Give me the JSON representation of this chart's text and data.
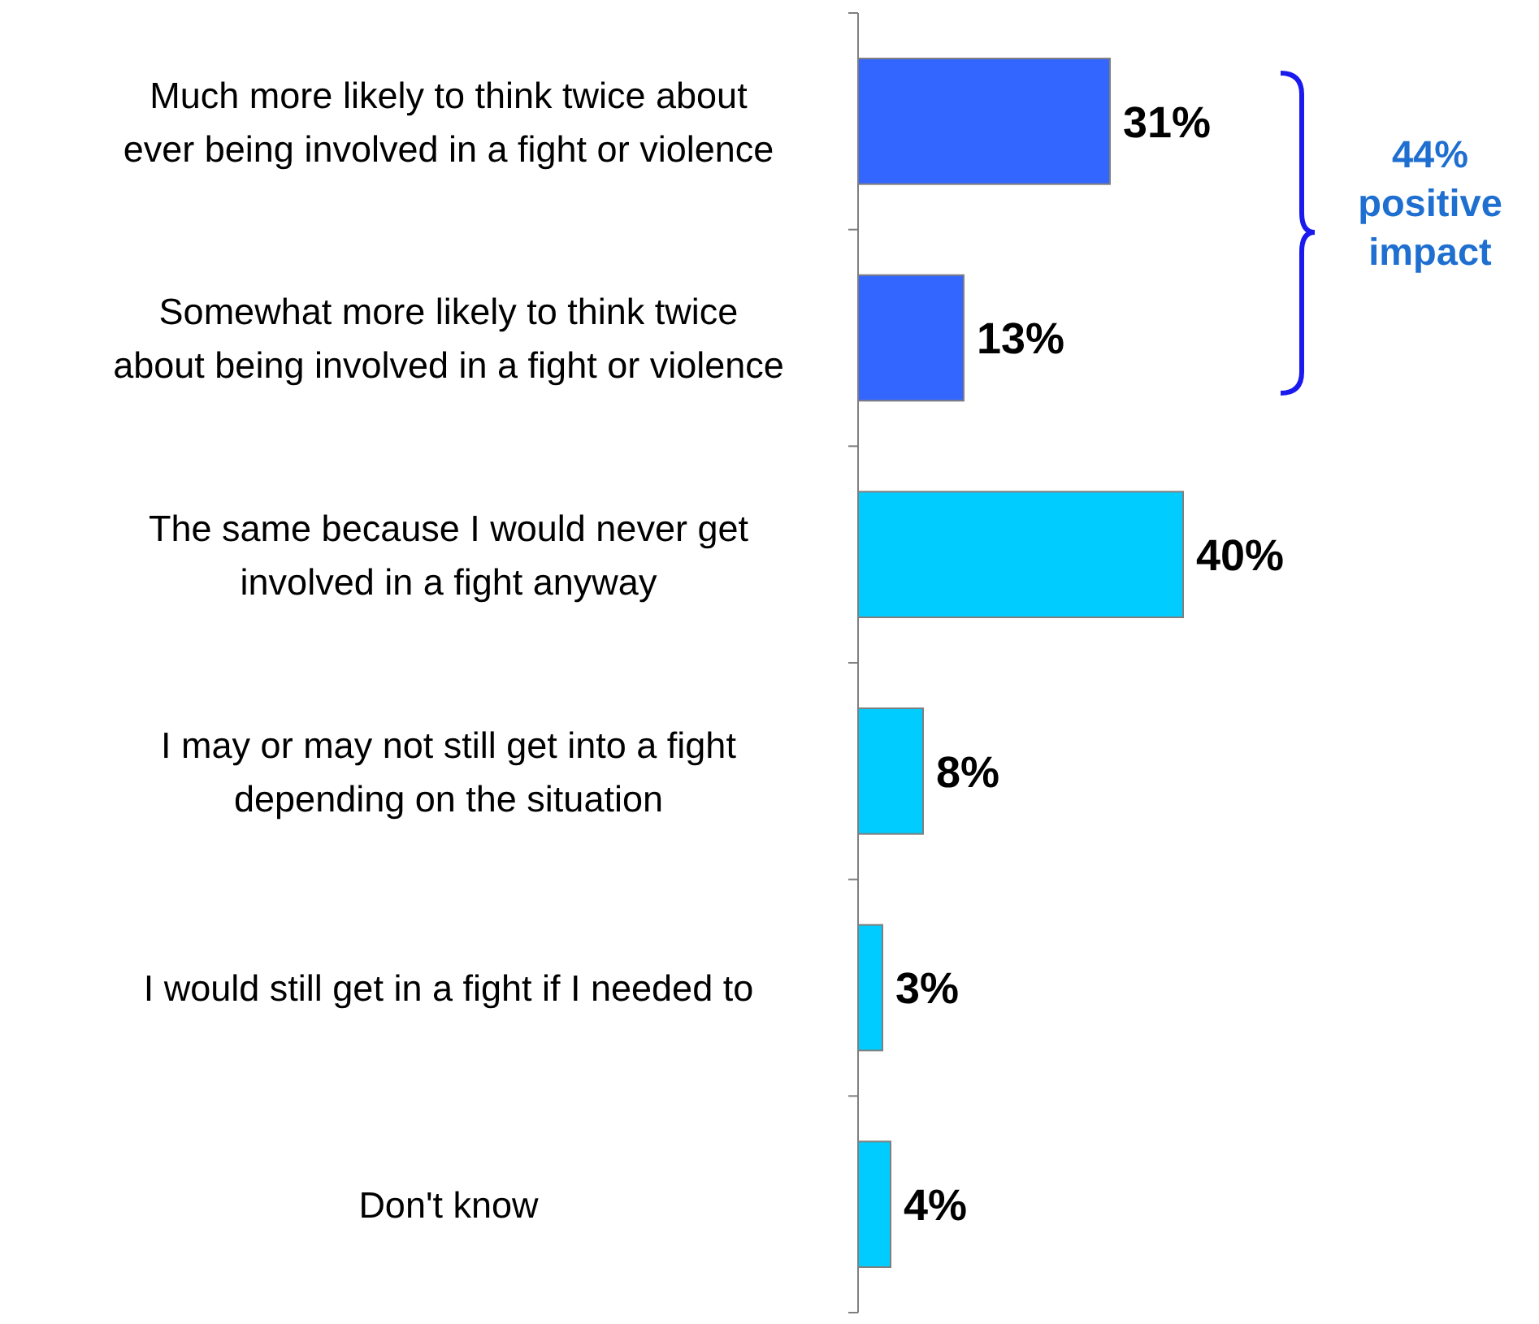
{
  "chart_data": {
    "type": "bar",
    "orientation": "horizontal",
    "categories": [
      "Much more likely to think twice about\never being involved in a fight or violence",
      "Somewhat more likely to think twice\nabout being involved in a fight or violence",
      "The same because I would never get\ninvolved in a fight anyway",
      "I may or may not still get into a fight\ndepending on the situation",
      "I would still get in a fight if I needed to",
      "Don't know"
    ],
    "values": [
      31,
      13,
      40,
      8,
      3,
      4
    ],
    "colors": [
      "#3366ff",
      "#3366ff",
      "#00ccff",
      "#00ccff",
      "#00ccff",
      "#00ccff"
    ],
    "value_labels": [
      "31%",
      "13%",
      "40%",
      "8%",
      "3%",
      "4%"
    ],
    "tick_labels": "y",
    "annotations": [
      "44%\npositive\nimpact"
    ]
  }
}
